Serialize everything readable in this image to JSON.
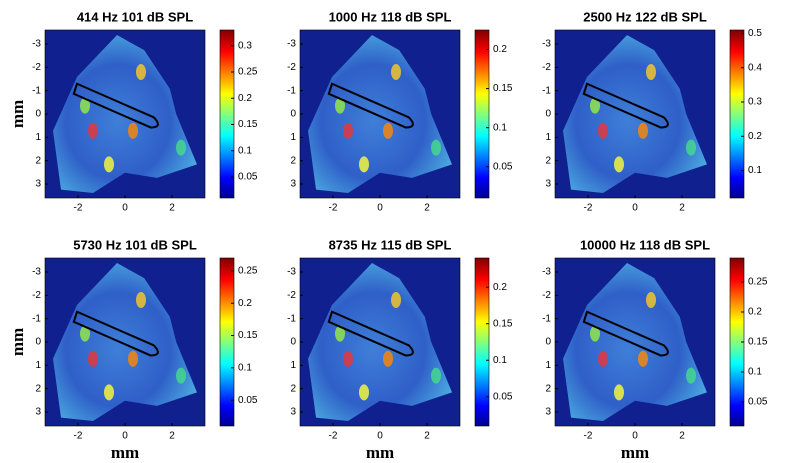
{
  "chart_data": [
    {
      "type": "heatmap",
      "title": "414 Hz  101 dB SPL",
      "ylabel": "mm",
      "xlim": [
        -3.4,
        3.4
      ],
      "ylim": [
        -3.6,
        3.6
      ],
      "xticks": [
        -2,
        0,
        2
      ],
      "yticks": [
        -3,
        -2,
        -1,
        0,
        1,
        2,
        3
      ],
      "clim": [
        0.01,
        0.33
      ],
      "cticks": [
        0.05,
        0.1,
        0.15,
        0.2,
        0.25,
        0.3
      ]
    },
    {
      "type": "heatmap",
      "title": "1000 Hz  118 dB SPL",
      "xlim": [
        -3.4,
        3.4
      ],
      "ylim": [
        -3.6,
        3.6
      ],
      "xticks": [
        -2,
        0,
        2
      ],
      "yticks": [
        -3,
        -2,
        -1,
        0,
        1,
        2,
        3
      ],
      "clim": [
        0.01,
        0.225
      ],
      "cticks": [
        0.05,
        0.1,
        0.15,
        0.2
      ]
    },
    {
      "type": "heatmap",
      "title": "2500 Hz  122 dB SPL",
      "xlim": [
        -3.4,
        3.4
      ],
      "ylim": [
        -3.6,
        3.6
      ],
      "xticks": [
        -2,
        0,
        2
      ],
      "yticks": [
        -3,
        -2,
        -1,
        0,
        1,
        2,
        3
      ],
      "clim": [
        0.02,
        0.51
      ],
      "cticks": [
        0.1,
        0.2,
        0.3,
        0.4,
        0.5
      ]
    },
    {
      "type": "heatmap",
      "title": "5730 Hz  101 dB SPL",
      "xlabel": "mm",
      "ylabel": "mm",
      "xlim": [
        -3.4,
        3.4
      ],
      "ylim": [
        -3.6,
        3.6
      ],
      "xticks": [
        -2,
        0,
        2
      ],
      "yticks": [
        -3,
        -2,
        -1,
        0,
        1,
        2,
        3
      ],
      "clim": [
        0.01,
        0.27
      ],
      "cticks": [
        0.05,
        0.1,
        0.15,
        0.2,
        0.25
      ]
    },
    {
      "type": "heatmap",
      "title": "8735 Hz  115 dB SPL",
      "xlabel": "mm",
      "xlim": [
        -3.4,
        3.4
      ],
      "ylim": [
        -3.6,
        3.6
      ],
      "xticks": [
        -2,
        0,
        2
      ],
      "yticks": [
        -3,
        -2,
        -1,
        0,
        1,
        2,
        3
      ],
      "clim": [
        0.01,
        0.24
      ],
      "cticks": [
        0.05,
        0.1,
        0.15,
        0.2
      ]
    },
    {
      "type": "heatmap",
      "title": "10000 Hz  118 dB SPL",
      "xlabel": "mm",
      "xlim": [
        -3.4,
        3.4
      ],
      "ylim": [
        -3.6,
        3.6
      ],
      "xticks": [
        -2,
        0,
        2
      ],
      "yticks": [
        -3,
        -2,
        -1,
        0,
        1,
        2,
        3
      ],
      "clim": [
        0.01,
        0.29
      ],
      "cticks": [
        0.05,
        0.1,
        0.15,
        0.2,
        0.25
      ]
    }
  ]
}
